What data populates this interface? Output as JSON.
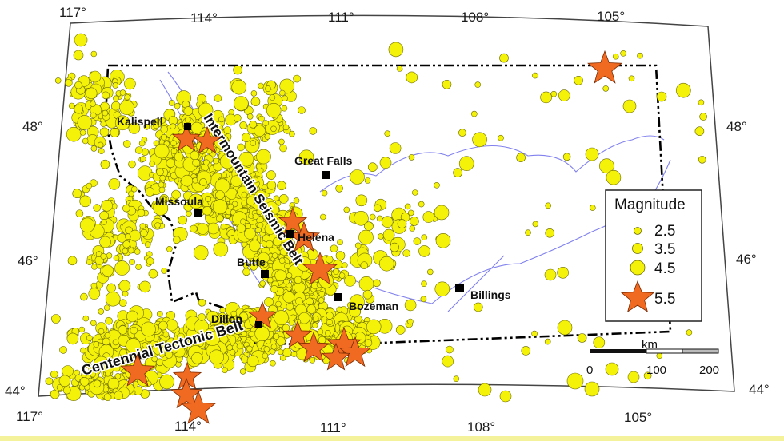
{
  "map": {
    "lon_labels_top": [
      "117°",
      "114°",
      "111°",
      "108°",
      "105°"
    ],
    "lon_labels_bottom": [
      "117°",
      "114°",
      "111°",
      "108°",
      "105°"
    ],
    "lat_labels_left": [
      "48°",
      "46°",
      "44°"
    ],
    "lat_labels_right": [
      "48°",
      "46°",
      "44°"
    ],
    "cities": [
      {
        "name": "Kalispell"
      },
      {
        "name": "Great Falls"
      },
      {
        "name": "Missoula"
      },
      {
        "name": "Helena"
      },
      {
        "name": "Butte"
      },
      {
        "name": "Bozeman"
      },
      {
        "name": "Billings"
      },
      {
        "name": "Dillon"
      }
    ],
    "belts": {
      "intermountain": "Intermountain Seismic Belt",
      "centennial": "Centennial Tectonic Belt"
    },
    "colors": {
      "quake_fill": "#f5f20a",
      "quake_stroke": "#6b6b00",
      "star_fill": "#f06a22",
      "star_stroke": "#7a2a00",
      "river": "#8080ee",
      "border": "#000000",
      "frame": "#444444"
    }
  },
  "legend": {
    "title": "Magnitude",
    "entries": [
      "2.5",
      "3.5",
      "4.5",
      "5.5"
    ]
  },
  "scale_bar": {
    "unit": "km",
    "ticks": [
      "0",
      "100",
      "200"
    ]
  }
}
